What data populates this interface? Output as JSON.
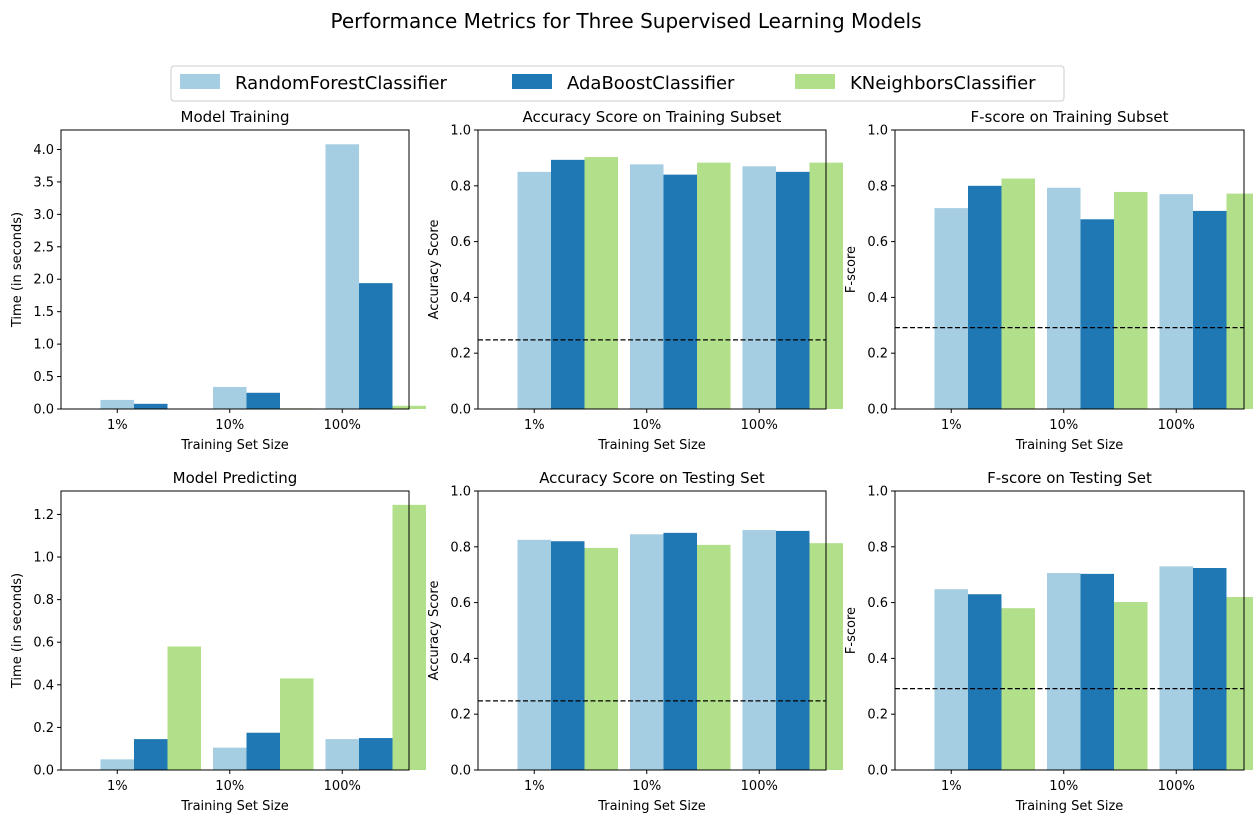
{
  "figure": {
    "title": "Performance Metrics for Three Supervised Learning Models",
    "legend": {
      "placement": "top-center",
      "entries": [
        {
          "name": "RandomForestClassifier",
          "color": "#a6cee3"
        },
        {
          "name": "AdaBoostClassifier",
          "color": "#1f78b4"
        },
        {
          "name": "KNeighborsClassifier",
          "color": "#b2df8a"
        }
      ]
    }
  },
  "chart_data": [
    {
      "type": "bar",
      "title": "Model Training",
      "xlabel": "Training Set Size",
      "ylabel": "Time (in seconds)",
      "categories": [
        "1%",
        "10%",
        "100%"
      ],
      "ylim": [
        0,
        4.3
      ],
      "yticks": [
        "0.0",
        "0.5",
        "1.0",
        "1.5",
        "2.0",
        "2.5",
        "3.0",
        "3.5",
        "4.0"
      ],
      "series": [
        {
          "name": "RandomForestClassifier",
          "color": "#a6cee3",
          "values": [
            0.14,
            0.34,
            4.08
          ]
        },
        {
          "name": "AdaBoostClassifier",
          "color": "#1f78b4",
          "values": [
            0.08,
            0.25,
            1.94
          ]
        },
        {
          "name": "KNeighborsClassifier",
          "color": "#b2df8a",
          "values": [
            0.005,
            0.01,
            0.05
          ]
        }
      ]
    },
    {
      "type": "bar",
      "title": "Accuracy Score on Training Subset",
      "xlabel": "Training Set Size",
      "ylabel": "Accuracy Score",
      "categories": [
        "1%",
        "10%",
        "100%"
      ],
      "ylim": [
        0,
        1.0
      ],
      "yticks": [
        "0.0",
        "0.2",
        "0.4",
        "0.6",
        "0.8",
        "1.0"
      ],
      "baseline": 0.2478,
      "series": [
        {
          "name": "RandomForestClassifier",
          "color": "#a6cee3",
          "values": [
            0.85,
            0.877,
            0.87
          ]
        },
        {
          "name": "AdaBoostClassifier",
          "color": "#1f78b4",
          "values": [
            0.893,
            0.84,
            0.85
          ]
        },
        {
          "name": "KNeighborsClassifier",
          "color": "#b2df8a",
          "values": [
            0.903,
            0.883,
            0.883
          ]
        }
      ]
    },
    {
      "type": "bar",
      "title": "F-score on Training Subset",
      "xlabel": "Training Set Size",
      "ylabel": "F-score",
      "categories": [
        "1%",
        "10%",
        "100%"
      ],
      "ylim": [
        0,
        1.0
      ],
      "yticks": [
        "0.0",
        "0.2",
        "0.4",
        "0.6",
        "0.8",
        "1.0"
      ],
      "baseline": 0.2917,
      "series": [
        {
          "name": "RandomForestClassifier",
          "color": "#a6cee3",
          "values": [
            0.72,
            0.793,
            0.77
          ]
        },
        {
          "name": "AdaBoostClassifier",
          "color": "#1f78b4",
          "values": [
            0.8,
            0.68,
            0.71
          ]
        },
        {
          "name": "KNeighborsClassifier",
          "color": "#b2df8a",
          "values": [
            0.826,
            0.778,
            0.772
          ]
        }
      ]
    },
    {
      "type": "bar",
      "title": "Model Predicting",
      "xlabel": "Training Set Size",
      "ylabel": "Time (in seconds)",
      "categories": [
        "1%",
        "10%",
        "100%"
      ],
      "ylim": [
        0,
        1.31
      ],
      "yticks": [
        "0.0",
        "0.2",
        "0.4",
        "0.6",
        "0.8",
        "1.0",
        "1.2"
      ],
      "series": [
        {
          "name": "RandomForestClassifier",
          "color": "#a6cee3",
          "values": [
            0.05,
            0.105,
            0.145
          ]
        },
        {
          "name": "AdaBoostClassifier",
          "color": "#1f78b4",
          "values": [
            0.145,
            0.175,
            0.15
          ]
        },
        {
          "name": "KNeighborsClassifier",
          "color": "#b2df8a",
          "values": [
            0.58,
            0.43,
            1.245
          ]
        }
      ]
    },
    {
      "type": "bar",
      "title": "Accuracy Score on Testing Set",
      "xlabel": "Training Set Size",
      "ylabel": "Accuracy Score",
      "categories": [
        "1%",
        "10%",
        "100%"
      ],
      "ylim": [
        0,
        1.0
      ],
      "yticks": [
        "0.0",
        "0.2",
        "0.4",
        "0.6",
        "0.8",
        "1.0"
      ],
      "baseline": 0.2478,
      "series": [
        {
          "name": "RandomForestClassifier",
          "color": "#a6cee3",
          "values": [
            0.825,
            0.845,
            0.86
          ]
        },
        {
          "name": "AdaBoostClassifier",
          "color": "#1f78b4",
          "values": [
            0.82,
            0.85,
            0.857
          ]
        },
        {
          "name": "KNeighborsClassifier",
          "color": "#b2df8a",
          "values": [
            0.796,
            0.807,
            0.813
          ]
        }
      ]
    },
    {
      "type": "bar",
      "title": "F-score on Testing Set",
      "xlabel": "Training Set Size",
      "ylabel": "F-score",
      "categories": [
        "1%",
        "10%",
        "100%"
      ],
      "ylim": [
        0,
        1.0
      ],
      "yticks": [
        "0.0",
        "0.2",
        "0.4",
        "0.6",
        "0.8",
        "1.0"
      ],
      "baseline": 0.2917,
      "series": [
        {
          "name": "RandomForestClassifier",
          "color": "#a6cee3",
          "values": [
            0.648,
            0.706,
            0.73
          ]
        },
        {
          "name": "AdaBoostClassifier",
          "color": "#1f78b4",
          "values": [
            0.63,
            0.703,
            0.724
          ]
        },
        {
          "name": "KNeighborsClassifier",
          "color": "#b2df8a",
          "values": [
            0.58,
            0.602,
            0.62
          ]
        }
      ]
    }
  ]
}
